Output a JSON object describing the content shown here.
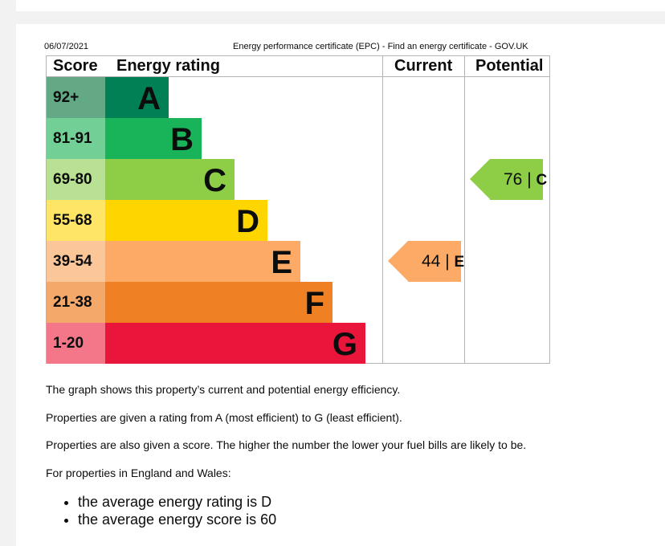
{
  "print_header": {
    "date": "06/07/2021",
    "title": "Energy performance certificate (EPC) - Find an energy certificate - GOV.UK"
  },
  "epc_table": {
    "headers": {
      "score": "Score",
      "rating": "Energy rating",
      "current": "Current",
      "potential": "Potential"
    },
    "bands": [
      {
        "score": "92+",
        "letter": "A",
        "score_color": "#64a986",
        "bar_color": "#008054"
      },
      {
        "score": "81-91",
        "letter": "B",
        "score_color": "#72cf95",
        "bar_color": "#19b459"
      },
      {
        "score": "69-80",
        "letter": "C",
        "score_color": "#b9e193",
        "bar_color": "#8dce46"
      },
      {
        "score": "55-68",
        "letter": "D",
        "score_color": "#ffe566",
        "bar_color": "#ffd500"
      },
      {
        "score": "39-54",
        "letter": "E",
        "score_color": "#fcc798",
        "bar_color": "#fcaa65"
      },
      {
        "score": "21-38",
        "letter": "F",
        "score_color": "#f4a86a",
        "bar_color": "#ef8023"
      },
      {
        "score": "1-20",
        "letter": "G",
        "score_color": "#f37789",
        "bar_color": "#e9153b"
      }
    ],
    "current": {
      "score": "44",
      "separator": "|",
      "letter": "E",
      "color": "#fcaa65"
    },
    "potential": {
      "score": "76",
      "separator": "|",
      "letter": "C",
      "color": "#8dce46"
    }
  },
  "paragraphs": [
    "The graph shows this property’s current and potential energy efficiency.",
    "Properties are given a rating from A (most efficient) to G (least efficient).",
    "Properties are also given a score. The higher the number the lower your fuel bills are likely to be.",
    "For properties in England and Wales:"
  ],
  "bullets": [
    "the average energy rating is D",
    "the average energy score is 60"
  ]
}
